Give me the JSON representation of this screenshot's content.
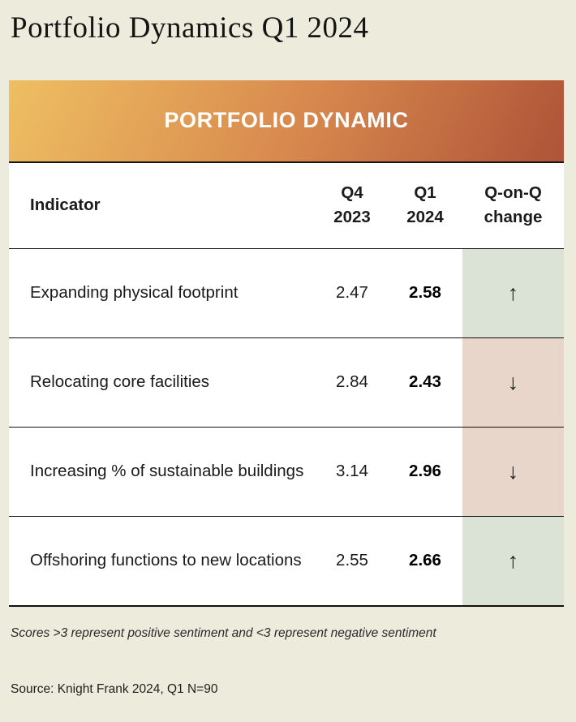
{
  "page": {
    "title": "Portfolio Dynamics Q1 2024",
    "background_color": "#ECEBDC"
  },
  "banner": {
    "label": "PORTFOLIO DYNAMIC",
    "gradient_start_color": "#EEBF62",
    "gradient_end_color": "#AE5338",
    "text_color": "#FFFFFF"
  },
  "table": {
    "header": {
      "indicator": "Indicator",
      "q4": [
        "Q4",
        "2023"
      ],
      "q1": [
        "Q1",
        "2024"
      ],
      "change": [
        "Q-on-Q",
        "change"
      ]
    },
    "rows": [
      {
        "indicator": "Expanding physical footprint",
        "q4": "2.47",
        "q1": "2.58",
        "direction": "up",
        "arrow": "↑"
      },
      {
        "indicator": "Relocating core facilities",
        "q4": "2.84",
        "q1": "2.43",
        "direction": "down",
        "arrow": "↓"
      },
      {
        "indicator": "Increasing % of sustainable buildings",
        "q4": "3.14",
        "q1": "2.96",
        "direction": "down",
        "arrow": "↓"
      },
      {
        "indicator": "Offshoring functions to new locations",
        "q4": "2.55",
        "q1": "2.66",
        "direction": "up",
        "arrow": "↑"
      }
    ],
    "up_cell_color": "#DAE3D5",
    "down_cell_color": "#E7D6C9"
  },
  "chart_data": {
    "type": "table",
    "title": "PORTFOLIO DYNAMIC",
    "columns": [
      "Indicator",
      "Q4 2023",
      "Q1 2024",
      "Q-on-Q change"
    ],
    "categories": [
      "Expanding physical footprint",
      "Relocating core facilities",
      "Increasing % of sustainable buildings",
      "Offshoring functions to new locations"
    ],
    "series": [
      {
        "name": "Q4 2023",
        "values": [
          2.47,
          2.84,
          3.14,
          2.55
        ]
      },
      {
        "name": "Q1 2024",
        "values": [
          2.58,
          2.43,
          2.96,
          2.66
        ]
      },
      {
        "name": "Q-on-Q change",
        "values": [
          "up",
          "down",
          "down",
          "up"
        ]
      }
    ]
  },
  "footnote": {
    "text": "Scores >3 represent positive sentiment and <3 represent negative sentiment"
  },
  "source": {
    "text": "Source: Knight Frank 2024, Q1 N=90"
  }
}
